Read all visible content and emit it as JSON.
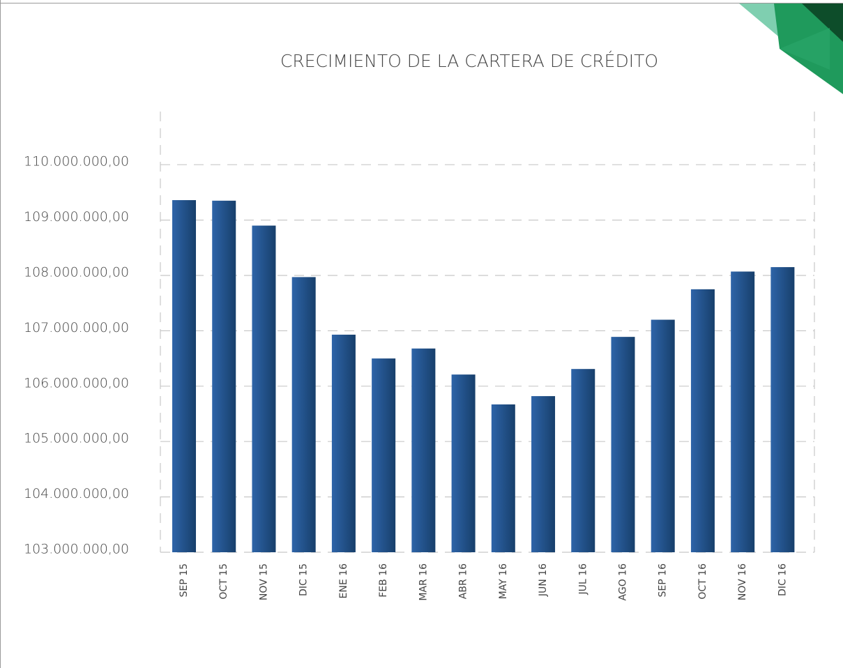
{
  "chart_data": {
    "type": "bar",
    "title": "CRECIMIENTO DE LA CARTERA DE CRÉDITO",
    "categories": [
      "SEP 15",
      "OCT 15",
      "NOV 15",
      "DIC 15",
      "ENE 16",
      "FEB 16",
      "MAR 16",
      "ABR 16",
      "MAY 16",
      "JUN 16",
      "JUL 16",
      "AGO 16",
      "SEP 16",
      "OCT 16",
      "NOV 16",
      "DIC 16"
    ],
    "values": [
      109360000,
      109350000,
      108900000,
      107970000,
      106930000,
      106500000,
      106680000,
      106210000,
      105670000,
      105820000,
      106310000,
      106890000,
      107200000,
      107750000,
      108070000,
      108150000
    ],
    "color": "#2e64a8",
    "ylim": [
      103000000,
      111000000
    ],
    "yticks": [
      {
        "value": 103000000,
        "label": "103.000.000,00"
      },
      {
        "value": 104000000,
        "label": "104.000.000,00"
      },
      {
        "value": 105000000,
        "label": "105.000.000,00"
      },
      {
        "value": 106000000,
        "label": "106.000.000,00"
      },
      {
        "value": 107000000,
        "label": "107.000.000,00"
      },
      {
        "value": 108000000,
        "label": "108.000.000,00"
      },
      {
        "value": 109000000,
        "label": "109.000.000,00"
      },
      {
        "value": 110000000,
        "label": "110.000.000,00"
      }
    ],
    "grid": true
  }
}
